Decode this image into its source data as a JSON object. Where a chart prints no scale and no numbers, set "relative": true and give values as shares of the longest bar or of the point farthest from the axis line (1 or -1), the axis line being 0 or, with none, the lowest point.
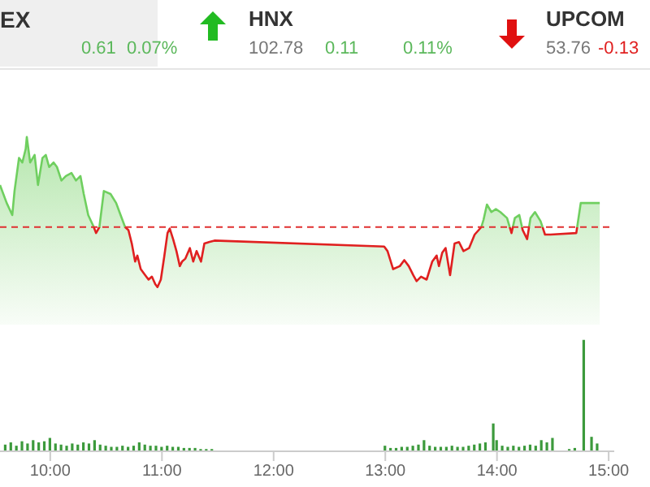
{
  "chart_data": [
    {
      "type": "other",
      "annotations": [
        "EX",
        "0.61",
        "0.07%",
        "HNX",
        "102.78",
        "0.11",
        "0.11%",
        "UPCOM",
        "53.76",
        "-0.13"
      ]
    },
    {
      "type": "area",
      "relative": true,
      "xlim": [
        9.55,
        15.05
      ],
      "tick_labels": false,
      "color": "#e02020",
      "ref_lines": [
        {
          "axis": "y",
          "value": 0.4,
          "color": "#e03030",
          "line_style": "dashed"
        }
      ],
      "x": [
        9.55,
        9.61,
        9.66,
        9.68,
        9.72,
        9.75,
        9.78,
        9.79,
        9.82,
        9.86,
        9.89,
        9.93,
        9.96,
        9.99,
        10.03,
        10.06,
        10.1,
        10.14,
        10.19,
        10.23,
        10.27,
        10.3,
        10.34,
        10.39,
        10.41,
        10.44,
        10.48,
        10.54,
        10.59,
        10.63,
        10.67,
        10.7,
        10.73,
        10.76,
        10.78,
        10.81,
        10.85,
        10.88,
        10.91,
        10.94,
        10.96,
        10.99,
        11.02,
        11.05,
        11.07,
        11.1,
        11.13,
        11.16,
        11.18,
        11.21,
        11.25,
        11.28,
        11.31,
        11.35,
        11.38,
        11.42,
        11.47,
        12.99,
        13.02,
        13.07,
        13.13,
        13.17,
        13.21,
        13.25,
        13.28,
        13.32,
        13.37,
        13.42,
        13.46,
        13.48,
        13.51,
        13.54,
        13.58,
        13.62,
        13.66,
        13.7,
        13.75,
        13.8,
        13.86,
        13.88,
        13.91,
        13.95,
        13.99,
        14.03,
        14.09,
        14.13,
        14.16,
        14.2,
        14.23,
        14.27,
        14.3,
        14.34,
        14.39,
        14.43,
        14.48,
        14.71,
        14.75,
        14.92
      ],
      "series": [
        {
          "color": "#6fcf5f",
          "values": [
            0.68,
            0.56,
            0.48,
            0.64,
            0.86,
            0.83,
            0.92,
            1.0,
            0.83,
            0.88,
            0.68,
            0.86,
            0.88,
            0.8,
            0.83,
            0.8,
            0.71,
            0.74,
            0.76,
            0.71,
            0.74,
            0.62,
            0.48,
            0.4,
            0.36,
            0.4,
            0.64,
            0.62,
            0.56,
            0.48,
            0.4,
            0.38,
            0.29,
            0.17,
            0.21,
            0.12,
            0.08,
            0.05,
            0.07,
            0.02,
            0,
            0.05,
            0.2,
            0.36,
            0.39,
            0.32,
            0.24,
            0.14,
            0.17,
            0.19,
            0.26,
            0.17,
            0.24,
            0.17,
            0.29,
            0.3,
            0.31,
            0.27,
            0.24,
            0.12,
            0.14,
            0.18,
            0.14,
            0.08,
            0.04,
            0.07,
            0.05,
            0.17,
            0.21,
            0.14,
            0.23,
            0.26,
            0.08,
            0.29,
            0.3,
            0.24,
            0.26,
            0.35,
            0.4,
            0.45,
            0.55,
            0.5,
            0.52,
            0.5,
            0.46,
            0.36,
            0.46,
            0.48,
            0.38,
            0.32,
            0.46,
            0.5,
            0.44,
            0.35,
            0.35,
            0.36,
            0.56,
            0.56
          ]
        }
      ]
    },
    {
      "type": "bar",
      "relative": true,
      "xlim": [
        9.55,
        15.05
      ],
      "tick_labels": "x",
      "color": "#3c9a3c",
      "xticks": [
        {
          "value": 10,
          "label": "10:00"
        },
        {
          "value": 11,
          "label": "11:00"
        },
        {
          "value": 12,
          "label": "12:00"
        },
        {
          "value": 13,
          "label": "13:00"
        },
        {
          "value": 14,
          "label": "14:00"
        },
        {
          "value": 15,
          "label": "15:00"
        }
      ],
      "x": [
        9.6,
        9.65,
        9.7,
        9.75,
        9.8,
        9.85,
        9.9,
        9.95,
        10.0,
        10.05,
        10.1,
        10.15,
        10.2,
        10.25,
        10.3,
        10.35,
        10.4,
        10.45,
        10.5,
        10.55,
        10.6,
        10.65,
        10.7,
        10.75,
        10.8,
        10.85,
        10.9,
        10.95,
        11.0,
        11.05,
        11.1,
        11.15,
        11.2,
        11.25,
        11.3,
        11.35,
        11.4,
        11.45,
        13.0,
        13.05,
        13.1,
        13.15,
        13.2,
        13.25,
        13.3,
        13.35,
        13.4,
        13.45,
        13.5,
        13.55,
        13.6,
        13.65,
        13.7,
        13.75,
        13.8,
        13.85,
        13.9,
        13.97,
        14.0,
        14.05,
        14.1,
        14.15,
        14.2,
        14.25,
        14.3,
        14.35,
        14.4,
        14.45,
        14.5,
        14.65,
        14.7,
        14.78,
        14.85,
        14.9
      ],
      "values": [
        0.06,
        0.08,
        0.05,
        0.09,
        0.07,
        0.1,
        0.08,
        0.09,
        0.12,
        0.07,
        0.06,
        0.05,
        0.07,
        0.06,
        0.08,
        0.07,
        0.1,
        0.06,
        0.05,
        0.04,
        0.04,
        0.05,
        0.04,
        0.05,
        0.08,
        0.06,
        0.05,
        0.05,
        0.04,
        0.05,
        0.04,
        0.04,
        0.03,
        0.03,
        0.03,
        0.02,
        0.02,
        0.02,
        0.05,
        0.03,
        0.03,
        0.04,
        0.04,
        0.05,
        0.06,
        0.1,
        0.05,
        0.04,
        0.04,
        0.04,
        0.05,
        0.04,
        0.04,
        0.05,
        0.06,
        0.07,
        0.08,
        0.25,
        0.1,
        0.05,
        0.04,
        0.05,
        0.04,
        0.05,
        0.06,
        0.05,
        0.1,
        0.08,
        0.12,
        0.02,
        0.03,
        1.0,
        0.13,
        0.07
      ]
    }
  ]
}
